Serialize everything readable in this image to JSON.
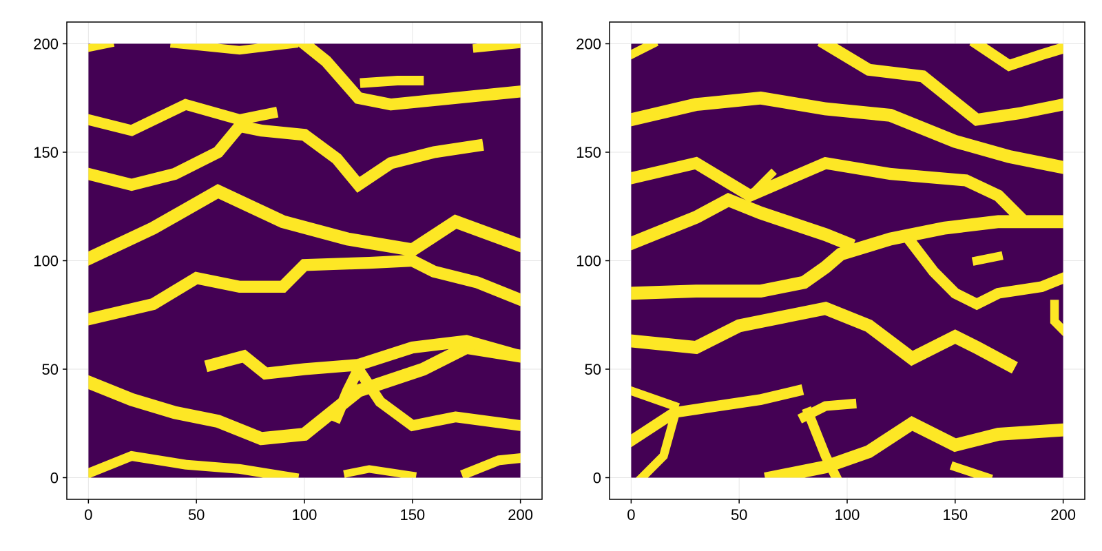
{
  "chart_data": [
    {
      "type": "heatmap",
      "title": "",
      "xlabel": "",
      "ylabel": "",
      "xlim": [
        -10,
        210
      ],
      "ylim": [
        -10,
        210
      ],
      "data_extent": {
        "x": [
          0,
          200
        ],
        "y": [
          0,
          200
        ]
      },
      "xticks": [
        0,
        50,
        100,
        150,
        200
      ],
      "yticks": [
        0,
        50,
        100,
        150,
        200
      ],
      "xtick_labels": [
        "0",
        "50",
        "100",
        "150",
        "200"
      ],
      "ytick_labels": [
        "0",
        "50",
        "100",
        "150",
        "200"
      ],
      "grid": true,
      "colormap": "viridis (binary)",
      "values_present": [
        0,
        1
      ],
      "background_color": "#440154",
      "stripe_color": "#fde725",
      "pattern": "binary field of meandering, roughly horizontal yellow stripes on a dark purple background",
      "stripes": [
        {
          "points": [
            [
              0,
              2
            ],
            [
              20,
              10
            ],
            [
              45,
              6
            ],
            [
              70,
              4
            ],
            [
              95,
              0
            ]
          ],
          "width": 4.5
        },
        {
          "points": [
            [
              120,
              2
            ],
            [
              130,
              4
            ],
            [
              150,
              1
            ]
          ],
          "width": 3.5
        },
        {
          "points": [
            [
              175,
              2
            ],
            [
              190,
              8
            ],
            [
              200,
              9
            ]
          ],
          "width": 4.5
        },
        {
          "points": [
            [
              0,
              44
            ],
            [
              20,
              36
            ],
            [
              40,
              30
            ],
            [
              60,
              26
            ],
            [
              80,
              18
            ],
            [
              100,
              20
            ],
            [
              125,
              40
            ],
            [
              155,
              50
            ],
            [
              175,
              60
            ],
            [
              200,
              56
            ]
          ],
          "width": 6
        },
        {
          "points": [
            [
              57,
              52
            ],
            [
              72,
              56
            ],
            [
              82,
              48
            ],
            [
              100,
              50
            ],
            [
              125,
              52
            ],
            [
              150,
              60
            ],
            [
              175,
              63
            ],
            [
              200,
              56
            ]
          ],
          "width": 5.5
        },
        {
          "points": [
            [
              115,
              28
            ],
            [
              120,
              40
            ],
            [
              125,
              50
            ],
            [
              135,
              35
            ],
            [
              150,
              24
            ],
            [
              170,
              28
            ],
            [
              200,
              24
            ]
          ],
          "width": 5
        },
        {
          "points": [
            [
              0,
              73
            ],
            [
              30,
              80
            ],
            [
              50,
              92
            ],
            [
              70,
              88
            ],
            [
              90,
              88
            ],
            [
              100,
              98
            ],
            [
              130,
              99
            ],
            [
              150,
              100
            ],
            [
              160,
              95
            ],
            [
              180,
              90
            ],
            [
              200,
              82
            ]
          ],
          "width": 5.5
        },
        {
          "points": [
            [
              0,
              101
            ],
            [
              30,
              115
            ],
            [
              60,
              132
            ],
            [
              90,
              118
            ],
            [
              120,
              110
            ],
            [
              150,
              105
            ],
            [
              170,
              118
            ],
            [
              200,
              107
            ]
          ],
          "width": 6
        },
        {
          "points": [
            [
              0,
              140
            ],
            [
              20,
              135
            ],
            [
              40,
              140
            ],
            [
              60,
              150
            ],
            [
              70,
              162
            ],
            [
              80,
              160
            ],
            [
              100,
              158
            ],
            [
              115,
              147
            ],
            [
              125,
              135
            ],
            [
              140,
              145
            ],
            [
              160,
              150
            ],
            [
              180,
              153
            ]
          ],
          "width": 5.5
        },
        {
          "points": [
            [
              0,
              165
            ],
            [
              20,
              160
            ],
            [
              45,
              172
            ],
            [
              70,
              165
            ],
            [
              85,
              168
            ]
          ],
          "width": 5
        },
        {
          "points": [
            [
              40,
              200
            ],
            [
              70,
              197
            ],
            [
              95,
              200
            ]
          ],
          "width": 4
        },
        {
          "points": [
            [
              100,
              200
            ],
            [
              110,
              192
            ],
            [
              125,
              175
            ],
            [
              140,
              172
            ],
            [
              170,
              175
            ],
            [
              200,
              178
            ]
          ],
          "width": 5.5
        },
        {
          "points": [
            [
              128,
              182
            ],
            [
              143,
              183
            ],
            [
              153,
              183
            ]
          ],
          "width": 4.5
        },
        {
          "points": [
            [
              0,
              198
            ],
            [
              10,
              200
            ]
          ],
          "width": 3.5
        },
        {
          "points": [
            [
              180,
              198
            ],
            [
              200,
              200
            ]
          ],
          "width": 4
        }
      ]
    },
    {
      "type": "heatmap",
      "title": "",
      "xlabel": "",
      "ylabel": "",
      "xlim": [
        -10,
        210
      ],
      "ylim": [
        -10,
        210
      ],
      "data_extent": {
        "x": [
          0,
          200
        ],
        "y": [
          0,
          200
        ]
      },
      "xticks": [
        0,
        50,
        100,
        150,
        200
      ],
      "yticks": [
        0,
        50,
        100,
        150,
        200
      ],
      "xtick_labels": [
        "0",
        "50",
        "100",
        "150",
        "200"
      ],
      "ytick_labels": [
        "0",
        "50",
        "100",
        "150",
        "200"
      ],
      "grid": true,
      "colormap": "viridis (binary)",
      "values_present": [
        0,
        1
      ],
      "background_color": "#440154",
      "stripe_color": "#fde725",
      "pattern": "binary field of meandering, roughly horizontal yellow stripes on a dark purple background",
      "stripes": [
        {
          "points": [
            [
              0,
              17
            ],
            [
              20,
              30
            ],
            [
              40,
              33
            ],
            [
              60,
              36
            ],
            [
              77,
              40
            ]
          ],
          "width": 5
        },
        {
          "points": [
            [
              0,
              40
            ],
            [
              20,
              33
            ]
          ],
          "width": 4
        },
        {
          "points": [
            [
              20,
              28
            ],
            [
              15,
              10
            ],
            [
              5,
              0
            ]
          ],
          "width": 4
        },
        {
          "points": [
            [
              80,
              28
            ],
            [
              90,
              33
            ],
            [
              102,
              34
            ]
          ],
          "width": 4.5
        },
        {
          "points": [
            [
              82,
              30
            ],
            [
              90,
              10
            ],
            [
              95,
              0
            ]
          ],
          "width": 4.5
        },
        {
          "points": [
            [
              65,
              0
            ],
            [
              90,
              5
            ],
            [
              110,
              12
            ],
            [
              130,
              25
            ],
            [
              150,
              15
            ],
            [
              170,
              20
            ],
            [
              200,
              22
            ]
          ],
          "width": 6
        },
        {
          "points": [
            [
              150,
              5
            ],
            [
              165,
              0
            ]
          ],
          "width": 4
        },
        {
          "points": [
            [
              0,
              63
            ],
            [
              30,
              60
            ],
            [
              50,
              70
            ],
            [
              90,
              78
            ],
            [
              110,
              70
            ],
            [
              130,
              55
            ],
            [
              150,
              65
            ],
            [
              160,
              60
            ],
            [
              175,
              52
            ]
          ],
          "width": 6
        },
        {
          "points": [
            [
              0,
              85
            ],
            [
              30,
              86
            ],
            [
              60,
              86
            ],
            [
              80,
              90
            ],
            [
              90,
              97
            ],
            [
              97,
              103
            ],
            [
              120,
              110
            ],
            [
              145,
              115
            ],
            [
              170,
              118
            ],
            [
              200,
              118
            ]
          ],
          "width": 6
        },
        {
          "points": [
            [
              0,
              108
            ],
            [
              30,
              120
            ],
            [
              45,
              128
            ],
            [
              60,
              122
            ],
            [
              90,
              112
            ],
            [
              100,
              108
            ]
          ],
          "width": 6
        },
        {
          "points": [
            [
              130,
              108
            ],
            [
              140,
              95
            ],
            [
              150,
              85
            ],
            [
              160,
              80
            ],
            [
              170,
              85
            ],
            [
              190,
              88
            ],
            [
              200,
              92
            ]
          ],
          "width": 5
        },
        {
          "points": [
            [
              196,
              80
            ],
            [
              196,
              72
            ],
            [
              200,
              68
            ]
          ],
          "width": 4
        },
        {
          "points": [
            [
              160,
              100
            ],
            [
              170,
              102
            ]
          ],
          "width": 4
        },
        {
          "points": [
            [
              0,
              138
            ],
            [
              30,
              145
            ],
            [
              55,
              130
            ],
            [
              90,
              145
            ],
            [
              120,
              140
            ],
            [
              155,
              137
            ],
            [
              170,
              130
            ],
            [
              180,
              120
            ]
          ],
          "width": 5.5
        },
        {
          "points": [
            [
              0,
              165
            ],
            [
              30,
              172
            ],
            [
              60,
              175
            ],
            [
              90,
              170
            ],
            [
              120,
              167
            ],
            [
              150,
              155
            ],
            [
              175,
              148
            ],
            [
              200,
              143
            ]
          ],
          "width": 6
        },
        {
          "points": [
            [
              55,
              130
            ],
            [
              65,
              140
            ]
          ],
          "width": 3.5
        },
        {
          "points": [
            [
              90,
              200
            ],
            [
              110,
              188
            ],
            [
              135,
              185
            ],
            [
              160,
              165
            ],
            [
              180,
              168
            ],
            [
              200,
              172
            ]
          ],
          "width": 5.5
        },
        {
          "points": [
            [
              160,
              200
            ],
            [
              175,
              190
            ],
            [
              190,
              195
            ],
            [
              200,
              198
            ]
          ],
          "width": 5
        },
        {
          "points": [
            [
              0,
              195
            ],
            [
              10,
              200
            ]
          ],
          "width": 4
        }
      ]
    }
  ]
}
